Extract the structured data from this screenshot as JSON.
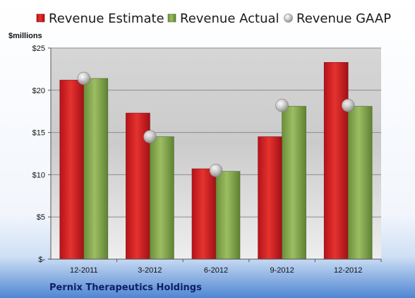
{
  "chart_data": {
    "type": "bar",
    "title": "",
    "xlabel": "",
    "ylabel": "$millions",
    "categories": [
      "12-2011",
      "3-2012",
      "6-2012",
      "9-2012",
      "12-2012"
    ],
    "series": [
      {
        "name": "Revenue Estimate",
        "kind": "bar",
        "values": [
          21.2,
          17.3,
          10.7,
          14.5,
          23.3
        ],
        "color": "#d91d25"
      },
      {
        "name": "Revenue Actual",
        "kind": "bar",
        "values": [
          21.4,
          14.5,
          10.4,
          18.1,
          18.1
        ],
        "color": "#7fa34a"
      },
      {
        "name": "Revenue GAAP",
        "kind": "scatter",
        "values": [
          21.4,
          14.5,
          10.5,
          18.2,
          18.2
        ],
        "color": "#bdbdbd"
      }
    ],
    "ylim": [
      0,
      25
    ],
    "yticks": [
      0,
      5,
      10,
      15,
      20,
      25
    ],
    "ytick_labels": [
      "$-",
      "$5",
      "$10",
      "$15",
      "$20",
      "$25"
    ],
    "grid": true,
    "legend_position": "top"
  },
  "footer": {
    "company": "Pernix Therapeutics Holdings"
  }
}
